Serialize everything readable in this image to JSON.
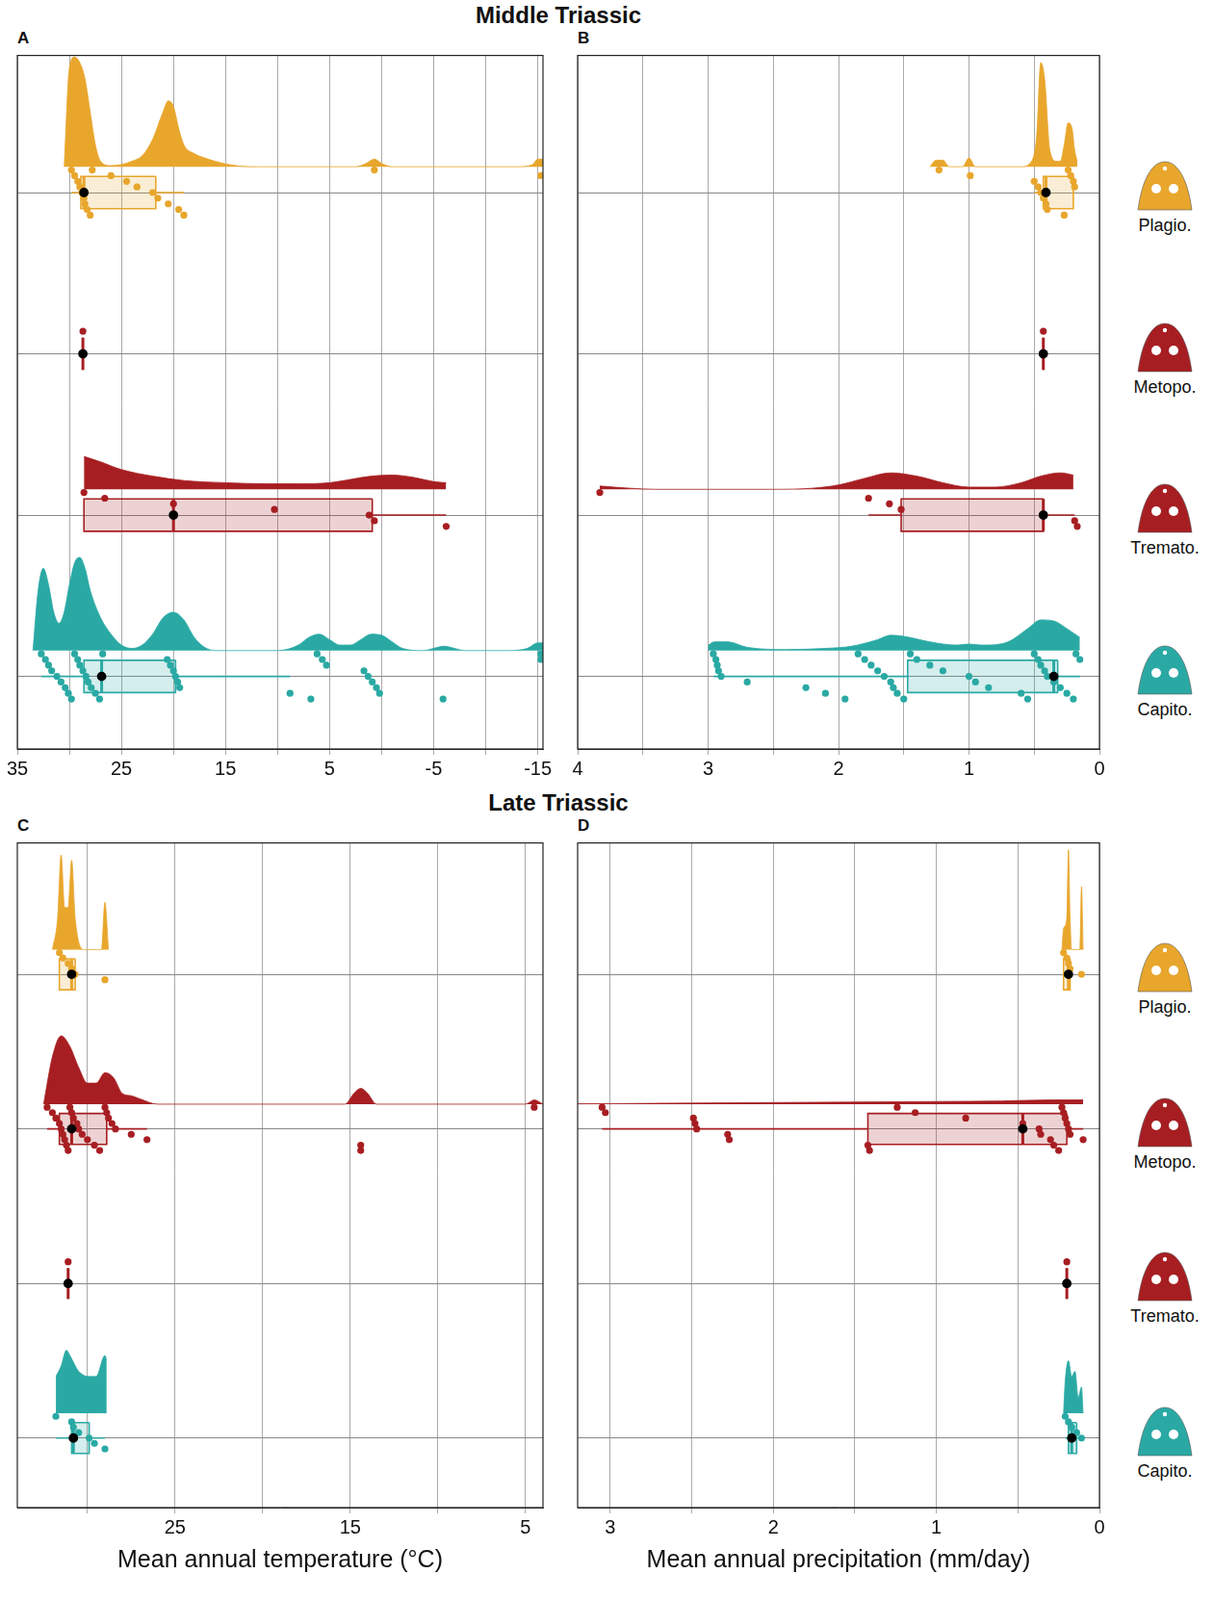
{
  "chart_data": [
    {
      "type": "raincloud",
      "title": "Middle Triassic",
      "panel": "A",
      "xlim": [
        35,
        -15.5
      ],
      "xticks": [
        35,
        25,
        15,
        5,
        -5,
        -15
      ],
      "grid": true,
      "tick_labels": "x",
      "series": [
        {
          "name": "Plagio.",
          "color": "#e8a62c",
          "values": [
            29.8,
            29.5,
            29.2,
            29,
            28.8,
            28.6,
            28.5,
            28.3,
            28,
            27.8,
            26,
            24.5,
            23.5,
            22,
            21.5,
            20.5,
            19.5,
            19,
            0.7,
            -15.3
          ],
          "box": {
            "whisker_low": 19,
            "q1": 21.7,
            "median": 28.6,
            "q3": 28.9,
            "whisker_high": 29.8
          },
          "density": {
            "x": [
              -15.5,
              -15,
              -14.5,
              -13,
              -1,
              0,
              0.7,
              1.5,
              2.5,
              12,
              14,
              16,
              17,
              18,
              19,
              19.5,
              20,
              20.5,
              21,
              22,
              23,
              24,
              25,
              26,
              27,
              27.5,
              28,
              28.5,
              29,
              29.5,
              30,
              30.5
            ],
            "y": [
              0.07,
              0.07,
              0.02,
              0,
              0,
              0.03,
              0.07,
              0.03,
              0,
              0,
              0.01,
              0.05,
              0.08,
              0.12,
              0.2,
              0.35,
              0.55,
              0.6,
              0.5,
              0.25,
              0.1,
              0.05,
              0.02,
              0.01,
              0.05,
              0.2,
              0.5,
              0.8,
              0.95,
              1,
              0.9,
              0
            ]
          }
        },
        {
          "name": "Metopo.",
          "color": "#a71e22",
          "values": [
            28.7
          ],
          "box": {
            "whisker_low": 28.7,
            "q1": 28.7,
            "median": 28.7,
            "q3": 28.7,
            "whisker_high": 28.7
          }
        },
        {
          "name": "Tremato.",
          "color": "#a71e22",
          "values": [
            28.6,
            26.6,
            20,
            10.3,
            1.2,
            0.7,
            -6.2
          ],
          "box": {
            "whisker_low": -6.2,
            "q1": 0.9,
            "median": 20,
            "q3": 28.6,
            "whisker_high": 28.6
          },
          "density": {
            "x": [
              -6.2,
              -5,
              -3,
              -1,
              1,
              3,
              5,
              8,
              11,
              15,
              19,
              22,
              25,
              27,
              28.6
            ],
            "y": [
              0.06,
              0.07,
              0.11,
              0.13,
              0.12,
              0.09,
              0.06,
              0.05,
              0.05,
              0.06,
              0.08,
              0.12,
              0.18,
              0.25,
              0.3
            ]
          }
        },
        {
          "name": "Capito.",
          "color": "#2aa9a4",
          "values": [
            32.7,
            32.3,
            32,
            31.7,
            31.2,
            30.8,
            30.4,
            30.1,
            29.8,
            29.5,
            29.2,
            29,
            28.7,
            28.4,
            28.2,
            27.9,
            27.5,
            27.1,
            26.8,
            20.6,
            20.3,
            20,
            19.8,
            19.6,
            19.4,
            8.8,
            6.8,
            6.2,
            5.7,
            5.3,
            1.7,
            1.3,
            0.9,
            0.5,
            0.2,
            -5.9,
            -15.3,
            -15.3
          ],
          "box": {
            "whisker_low": 8.8,
            "q1": 19.8,
            "median": 26.9,
            "q3": 28.6,
            "whisker_high": 32.7
          },
          "density": {
            "x": [
              -15.5,
              -15,
              -14,
              -12,
              -8,
              -7,
              -6,
              -5,
              -4,
              -2,
              -1,
              0,
              1,
              2,
              3,
              4,
              5,
              6,
              7,
              8,
              10,
              12,
              14,
              16,
              17,
              18,
              19,
              20,
              21,
              22,
              23,
              24,
              25,
              26,
              27,
              28,
              28.5,
              29,
              29.5,
              30,
              30.5,
              31,
              31.5,
              32,
              32.5,
              33,
              33.5
            ],
            "y": [
              0.07,
              0.07,
              0.02,
              0,
              0,
              0.02,
              0.04,
              0.02,
              0,
              0.02,
              0.08,
              0.14,
              0.15,
              0.1,
              0.05,
              0.05,
              0.1,
              0.15,
              0.12,
              0.05,
              0,
              0,
              0,
              0,
              0.03,
              0.12,
              0.28,
              0.35,
              0.3,
              0.15,
              0.05,
              0.02,
              0.05,
              0.15,
              0.3,
              0.55,
              0.75,
              0.85,
              0.8,
              0.6,
              0.35,
              0.25,
              0.35,
              0.6,
              0.75,
              0.55,
              0
            ]
          }
        }
      ]
    },
    {
      "type": "raincloud",
      "panel": "B",
      "xlim": [
        4,
        0
      ],
      "xticks": [
        4,
        3,
        2,
        1,
        0
      ],
      "grid": true,
      "tick_labels": "x",
      "series": [
        {
          "name": "Plagio.",
          "color": "#e8a62c",
          "values": [
            1.23,
            0.99,
            0.5,
            0.47,
            0.45,
            0.43,
            0.41,
            0.4,
            0.27,
            0.24,
            0.22,
            0.2,
            0.19
          ],
          "box": {
            "whisker_low": 0.19,
            "q1": 0.2,
            "median": 0.41,
            "q3": 0.43,
            "whisker_high": 0.5
          },
          "density": {
            "x": [
              0.17,
              0.19,
              0.21,
              0.24,
              0.27,
              0.3,
              0.33,
              0.38,
              0.42,
              0.45,
              0.48,
              0.52,
              0.6,
              0.95,
              1.0,
              1.05,
              1.15,
              1.2,
              1.25,
              1.3
            ],
            "y": [
              0.05,
              0.15,
              0.35,
              0.4,
              0.2,
              0.05,
              0.05,
              0.15,
              0.8,
              0.95,
              0.3,
              0.05,
              0,
              0,
              0.08,
              0,
              0,
              0.06,
              0.06,
              0
            ]
          }
        },
        {
          "name": "Metopo.",
          "color": "#a71e22",
          "values": [
            0.43
          ],
          "box": {
            "whisker_low": 0.43,
            "q1": 0.43,
            "median": 0.43,
            "q3": 0.43,
            "whisker_high": 0.43
          }
        },
        {
          "name": "Tremato.",
          "color": "#a71e22",
          "values": [
            3.83,
            1.77,
            1.61,
            1.52,
            0.43,
            0.19,
            0.17
          ],
          "box": {
            "whisker_low": 0.19,
            "q1": 0.43,
            "median": 0.43,
            "q3": 1.52,
            "whisker_high": 1.77
          },
          "density": {
            "x": [
              0.2,
              0.3,
              0.45,
              0.6,
              0.8,
              1.0,
              1.2,
              1.4,
              1.6,
              1.8,
              2.0,
              2.2,
              2.5,
              3.4,
              3.6,
              3.83
            ],
            "y": [
              0.13,
              0.15,
              0.12,
              0.06,
              0.02,
              0.02,
              0.06,
              0.12,
              0.15,
              0.1,
              0.04,
              0.01,
              0,
              0,
              0.01,
              0.03
            ]
          }
        },
        {
          "name": "Capito.",
          "color": "#2aa9a4",
          "values": [
            2.96,
            2.94,
            2.93,
            2.92,
            2.9,
            2.7,
            2.25,
            2.1,
            1.95,
            1.85,
            1.8,
            1.75,
            1.7,
            1.65,
            1.6,
            1.58,
            1.55,
            1.5,
            1.45,
            1.4,
            1.3,
            1.2,
            1.0,
            0.95,
            0.85,
            0.6,
            0.55,
            0.5,
            0.47,
            0.45,
            0.42,
            0.4,
            0.35,
            0.3,
            0.25,
            0.2,
            0.18,
            0.15
          ],
          "box": {
            "whisker_low": 0.15,
            "q1": 0.32,
            "median": 0.35,
            "q3": 1.47,
            "whisker_high": 2.96
          },
          "density": {
            "x": [
              0.15,
              0.25,
              0.35,
              0.45,
              0.55,
              0.7,
              0.9,
              1.0,
              1.1,
              1.3,
              1.5,
              1.6,
              1.7,
              1.9,
              2.1,
              2.4,
              2.7,
              2.85,
              2.95,
              3.0
            ],
            "y": [
              0.12,
              0.2,
              0.27,
              0.28,
              0.2,
              0.08,
              0.05,
              0.06,
              0.05,
              0.08,
              0.13,
              0.14,
              0.1,
              0.04,
              0.02,
              0.01,
              0.03,
              0.08,
              0.08,
              0.05
            ]
          }
        }
      ]
    },
    {
      "type": "raincloud",
      "title": "Late Triassic",
      "panel": "C",
      "xlabel": "Mean annual temperature (°C)",
      "xlim": [
        34,
        4
      ],
      "xticks": [
        25,
        15,
        5
      ],
      "grid": true,
      "tick_labels": "x",
      "series": [
        {
          "name": "Plagio.",
          "color": "#e8a62c",
          "values": [
            31.6,
            31.4,
            31.1,
            30.9,
            30.7,
            29.0
          ],
          "box": {
            "whisker_low": 30.7,
            "q1": 30.7,
            "median": 30.9,
            "q3": 31.6,
            "whisker_high": 31.6
          },
          "density": {
            "x": [
              28.8,
              29.0,
              29.2,
              30.2,
              30.7,
              30.9,
              31.1,
              31.3,
              31.5,
              31.7,
              32.0
            ],
            "y": [
              0,
              0.45,
              0,
              0,
              0.3,
              0.85,
              0.4,
              0.4,
              0.9,
              0.3,
              0
            ]
          }
        },
        {
          "name": "Metopo.",
          "color": "#a71e22",
          "values": [
            32.3,
            32.0,
            31.8,
            31.6,
            31.5,
            31.4,
            31.3,
            31.2,
            31.1,
            31.0,
            30.9,
            30.8,
            30.6,
            30.5,
            30.3,
            30.0,
            29.6,
            29.3,
            29.0,
            28.9,
            28.8,
            28.6,
            28.4,
            27.5,
            26.6,
            14.4,
            14.4,
            4.5
          ],
          "box": {
            "whisker_low": 26.6,
            "q1": 28.9,
            "median": 30.9,
            "q3": 31.6,
            "whisker_high": 32.3
          },
          "density": {
            "x": [
              4,
              4.5,
              5,
              13.5,
              14,
              14.4,
              14.8,
              15.3,
              26,
              27,
              27.5,
              28,
              28.5,
              29,
              29.5,
              30,
              30.5,
              31,
              31.5,
              32,
              32.5
            ],
            "y": [
              0,
              0.04,
              0,
              0,
              0.1,
              0.15,
              0.1,
              0,
              0,
              0.05,
              0.08,
              0.1,
              0.25,
              0.3,
              0.2,
              0.2,
              0.35,
              0.55,
              0.65,
              0.45,
              0
            ]
          }
        },
        {
          "name": "Tremato.",
          "color": "#a71e22",
          "values": [
            31.1
          ],
          "box": {
            "whisker_low": 31.1,
            "q1": 31.1,
            "median": 31.1,
            "q3": 31.1,
            "whisker_high": 31.1
          }
        },
        {
          "name": "Capito.",
          "color": "#2aa9a4",
          "values": [
            31.8,
            30.9,
            30.8,
            30.5,
            29.9,
            29.6,
            29.0
          ],
          "box": {
            "whisker_low": 29.0,
            "q1": 29.9,
            "median": 30.8,
            "q3": 30.9,
            "whisker_high": 31.8
          },
          "density": {
            "x": [
              28.9,
              29.0,
              29.5,
              29.9,
              30.5,
              31.0,
              31.2,
              31.5,
              31.8
            ],
            "y": [
              0.5,
              0.55,
              0.35,
              0.35,
              0.4,
              0.55,
              0.6,
              0.45,
              0.35
            ]
          }
        }
      ]
    },
    {
      "type": "raincloud",
      "panel": "D",
      "xlabel": "Mean annual precipitation (mm/day)",
      "xlim": [
        3.2,
        0
      ],
      "xticks": [
        3,
        2,
        1,
        0
      ],
      "grid": true,
      "tick_labels": "x",
      "series": [
        {
          "name": "Plagio.",
          "color": "#e8a62c",
          "values": [
            0.22,
            0.2,
            0.19,
            0.18,
            0.11
          ],
          "box": {
            "whisker_low": 0.18,
            "q1": 0.18,
            "median": 0.19,
            "q3": 0.22,
            "whisker_high": 0.22
          },
          "density": {
            "x": [
              0.1,
              0.11,
              0.12,
              0.17,
              0.18,
              0.19,
              0.2,
              0.22,
              0.23
            ],
            "y": [
              0,
              0.6,
              0,
              0,
              0.3,
              0.95,
              0.3,
              0.2,
              0
            ]
          }
        },
        {
          "name": "Metopo.",
          "color": "#a71e22",
          "values": [
            3.05,
            3.03,
            2.49,
            2.48,
            2.47,
            2.28,
            2.27,
            1.42,
            1.41,
            1.24,
            1.13,
            0.82,
            0.47,
            0.37,
            0.36,
            0.3,
            0.28,
            0.25,
            0.23,
            0.22,
            0.21,
            0.2,
            0.19,
            0.18,
            0.1
          ],
          "box": {
            "whisker_low": 0.1,
            "q1": 0.2,
            "median": 0.47,
            "q3": 1.42,
            "whisker_high": 3.05
          },
          "density": {
            "x": [
              0.1,
              0.3,
              0.6,
              1.0,
              1.5,
              2.0,
              2.5,
              3.0,
              3.2
            ],
            "y": [
              0.04,
              0.04,
              0.03,
              0.025,
              0.02,
              0.015,
              0.01,
              0.005,
              0.003
            ]
          }
        },
        {
          "name": "Tremato.",
          "color": "#a71e22",
          "values": [
            0.2
          ],
          "box": {
            "whisker_low": 0.2,
            "q1": 0.2,
            "median": 0.2,
            "q3": 0.2,
            "whisker_high": 0.2
          }
        },
        {
          "name": "Capito.",
          "color": "#2aa9a4",
          "values": [
            0.21,
            0.19,
            0.17,
            0.14,
            0.11
          ],
          "box": {
            "whisker_low": 0.11,
            "q1": 0.14,
            "median": 0.17,
            "q3": 0.19,
            "whisker_high": 0.21
          },
          "density": {
            "x": [
              0.1,
              0.11,
              0.13,
              0.15,
              0.17,
              0.19,
              0.21,
              0.22
            ],
            "y": [
              0,
              0.25,
              0.15,
              0.4,
              0.35,
              0.5,
              0.3,
              0
            ]
          }
        }
      ]
    }
  ]
}
